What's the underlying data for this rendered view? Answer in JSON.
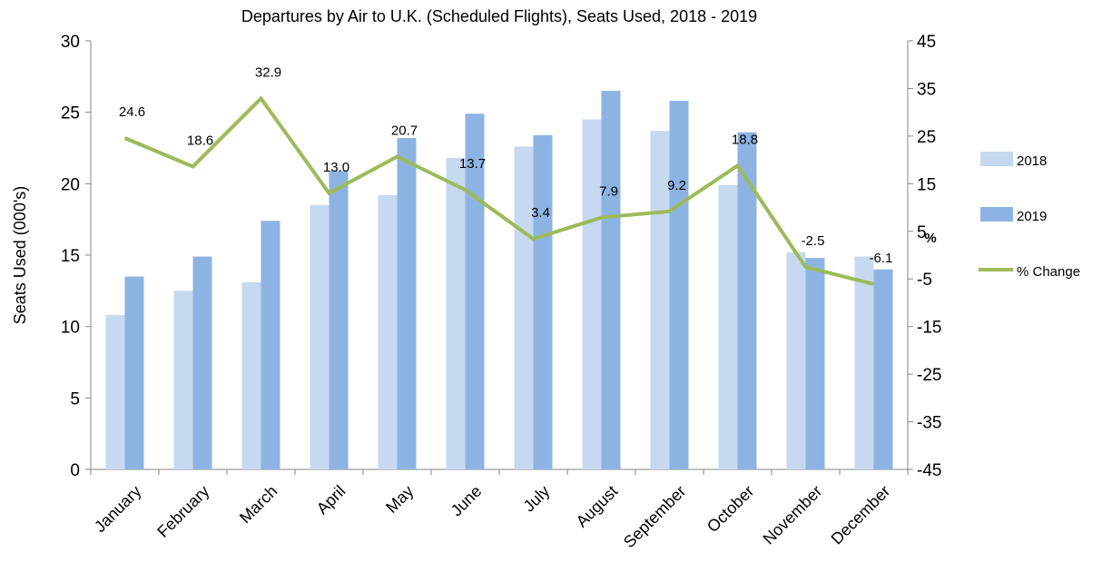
{
  "chart_data": {
    "type": "bar",
    "title": "Departures by Air to U.K. (Scheduled Flights), Seats Used, 2018 - 2019",
    "y_label": "Seats Used (000's)",
    "y2_label": "%",
    "categories": [
      "January",
      "February",
      "March",
      "April",
      "May",
      "June",
      "July",
      "August",
      "September",
      "October",
      "November",
      "December"
    ],
    "series": [
      {
        "name": "2018",
        "color": "#c6d9f1",
        "values": [
          10.8,
          12.5,
          13.1,
          18.5,
          19.2,
          21.8,
          22.6,
          24.5,
          23.7,
          19.9,
          15.2,
          14.9
        ]
      },
      {
        "name": "2019",
        "color": "#8db3e2",
        "values": [
          13.5,
          14.9,
          17.4,
          20.9,
          23.2,
          24.9,
          23.4,
          26.5,
          25.8,
          23.6,
          14.8,
          14.0
        ]
      },
      {
        "name": "% Change",
        "type": "line",
        "axis": "y2",
        "color": "#9bbb59",
        "values": [
          24.6,
          18.6,
          32.9,
          13.0,
          20.7,
          13.7,
          3.4,
          7.9,
          9.2,
          18.8,
          -2.5,
          -6.1
        ],
        "value_labels": [
          "24.6",
          "18.6",
          "32.9",
          "13.0",
          "20.7",
          "13.7",
          "3.4",
          "7.9",
          "9.2",
          "18.8",
          "-2.5",
          "-6.1"
        ]
      }
    ],
    "ylim": [
      0,
      30
    ],
    "yticks": [
      0,
      5,
      10,
      15,
      20,
      25,
      30
    ],
    "y2lim": [
      -45,
      45
    ],
    "y2ticks": [
      -45,
      -35,
      -25,
      -15,
      -5,
      5,
      15,
      25,
      35,
      45
    ],
    "legend": "right"
  }
}
